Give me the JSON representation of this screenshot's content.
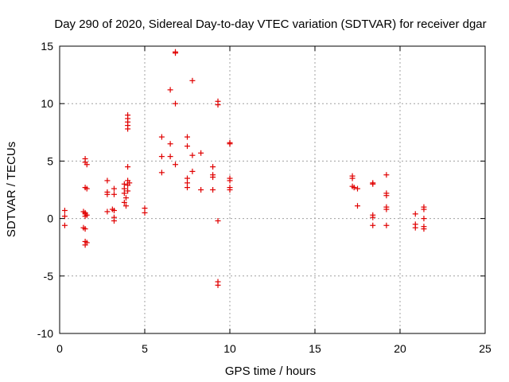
{
  "chart_data": {
    "type": "scatter",
    "title": "Day 290 of 2020, Sidereal Day-to-day VTEC variation (SDTVAR) for receiver dgar",
    "xlabel": "GPS time / hours",
    "ylabel": "SDTVAR / TECUs",
    "xlim": [
      0,
      25
    ],
    "ylim": [
      -10,
      15
    ],
    "xticks": [
      "0",
      "5",
      "10",
      "15",
      "20",
      "25"
    ],
    "yticks": [
      "-10",
      "-5",
      "0",
      "5",
      "10",
      "15"
    ],
    "grid": true,
    "marker": "plus",
    "series": [
      {
        "name": "SDTVAR",
        "color": "#e00000",
        "points": [
          [
            0.3,
            0.7
          ],
          [
            0.3,
            0.2
          ],
          [
            0.3,
            -0.6
          ],
          [
            1.5,
            5.2
          ],
          [
            1.5,
            4.9
          ],
          [
            1.6,
            4.7
          ],
          [
            1.5,
            2.7
          ],
          [
            1.6,
            2.6
          ],
          [
            1.4,
            0.6
          ],
          [
            1.5,
            0.5
          ],
          [
            1.5,
            0.4
          ],
          [
            1.6,
            0.3
          ],
          [
            1.5,
            0.2
          ],
          [
            1.4,
            -0.8
          ],
          [
            1.5,
            -0.9
          ],
          [
            1.5,
            -2.0
          ],
          [
            1.5,
            -2.3
          ],
          [
            1.6,
            -2.1
          ],
          [
            2.8,
            3.3
          ],
          [
            2.8,
            2.3
          ],
          [
            2.8,
            2.1
          ],
          [
            2.8,
            0.6
          ],
          [
            3.2,
            2.6
          ],
          [
            3.2,
            2.1
          ],
          [
            3.1,
            0.8
          ],
          [
            3.2,
            0.7
          ],
          [
            3.2,
            0.1
          ],
          [
            3.2,
            -0.2
          ],
          [
            3.8,
            3.0
          ],
          [
            3.8,
            2.6
          ],
          [
            3.8,
            2.2
          ],
          [
            3.9,
            1.8
          ],
          [
            3.8,
            1.4
          ],
          [
            3.9,
            1.1
          ],
          [
            4.0,
            3.3
          ],
          [
            4.0,
            2.9
          ],
          [
            4.0,
            2.4
          ],
          [
            4.1,
            3.1
          ],
          [
            4.0,
            9.0
          ],
          [
            4.0,
            8.7
          ],
          [
            4.0,
            8.4
          ],
          [
            4.0,
            8.1
          ],
          [
            4.0,
            7.8
          ],
          [
            4.0,
            4.5
          ],
          [
            5.0,
            0.9
          ],
          [
            5.0,
            0.5
          ],
          [
            6.0,
            7.1
          ],
          [
            6.0,
            5.4
          ],
          [
            6.0,
            4.0
          ],
          [
            6.5,
            11.2
          ],
          [
            6.5,
            6.5
          ],
          [
            6.5,
            5.4
          ],
          [
            6.8,
            14.5
          ],
          [
            6.8,
            14.4
          ],
          [
            6.8,
            10.0
          ],
          [
            6.8,
            4.7
          ],
          [
            7.5,
            7.1
          ],
          [
            7.5,
            6.3
          ],
          [
            7.5,
            3.5
          ],
          [
            7.5,
            3.1
          ],
          [
            7.5,
            2.7
          ],
          [
            7.8,
            12.0
          ],
          [
            7.8,
            5.5
          ],
          [
            7.8,
            4.1
          ],
          [
            8.3,
            5.7
          ],
          [
            8.3,
            2.5
          ],
          [
            9.0,
            4.5
          ],
          [
            9.0,
            3.8
          ],
          [
            9.0,
            3.6
          ],
          [
            9.0,
            2.5
          ],
          [
            9.3,
            10.2
          ],
          [
            9.3,
            9.9
          ],
          [
            9.3,
            -0.2
          ],
          [
            9.3,
            -5.5
          ],
          [
            9.3,
            -5.8
          ],
          [
            10.0,
            6.6
          ],
          [
            10.0,
            6.5
          ],
          [
            10.0,
            3.5
          ],
          [
            10.0,
            3.3
          ],
          [
            10.0,
            2.7
          ],
          [
            10.0,
            2.5
          ],
          [
            17.2,
            3.7
          ],
          [
            17.2,
            3.5
          ],
          [
            17.2,
            2.8
          ],
          [
            17.3,
            2.7
          ],
          [
            17.5,
            2.6
          ],
          [
            17.5,
            1.1
          ],
          [
            18.4,
            3.1
          ],
          [
            18.4,
            3.0
          ],
          [
            18.4,
            0.3
          ],
          [
            18.4,
            0.1
          ],
          [
            18.4,
            -0.6
          ],
          [
            19.2,
            3.8
          ],
          [
            19.2,
            2.2
          ],
          [
            19.2,
            2.0
          ],
          [
            19.2,
            1.0
          ],
          [
            19.2,
            0.8
          ],
          [
            19.2,
            -0.6
          ],
          [
            20.9,
            0.4
          ],
          [
            20.9,
            -0.5
          ],
          [
            20.9,
            -0.8
          ],
          [
            21.4,
            1.0
          ],
          [
            21.4,
            0.8
          ],
          [
            21.4,
            0.0
          ],
          [
            21.4,
            -0.7
          ],
          [
            21.4,
            -0.9
          ]
        ]
      }
    ]
  }
}
